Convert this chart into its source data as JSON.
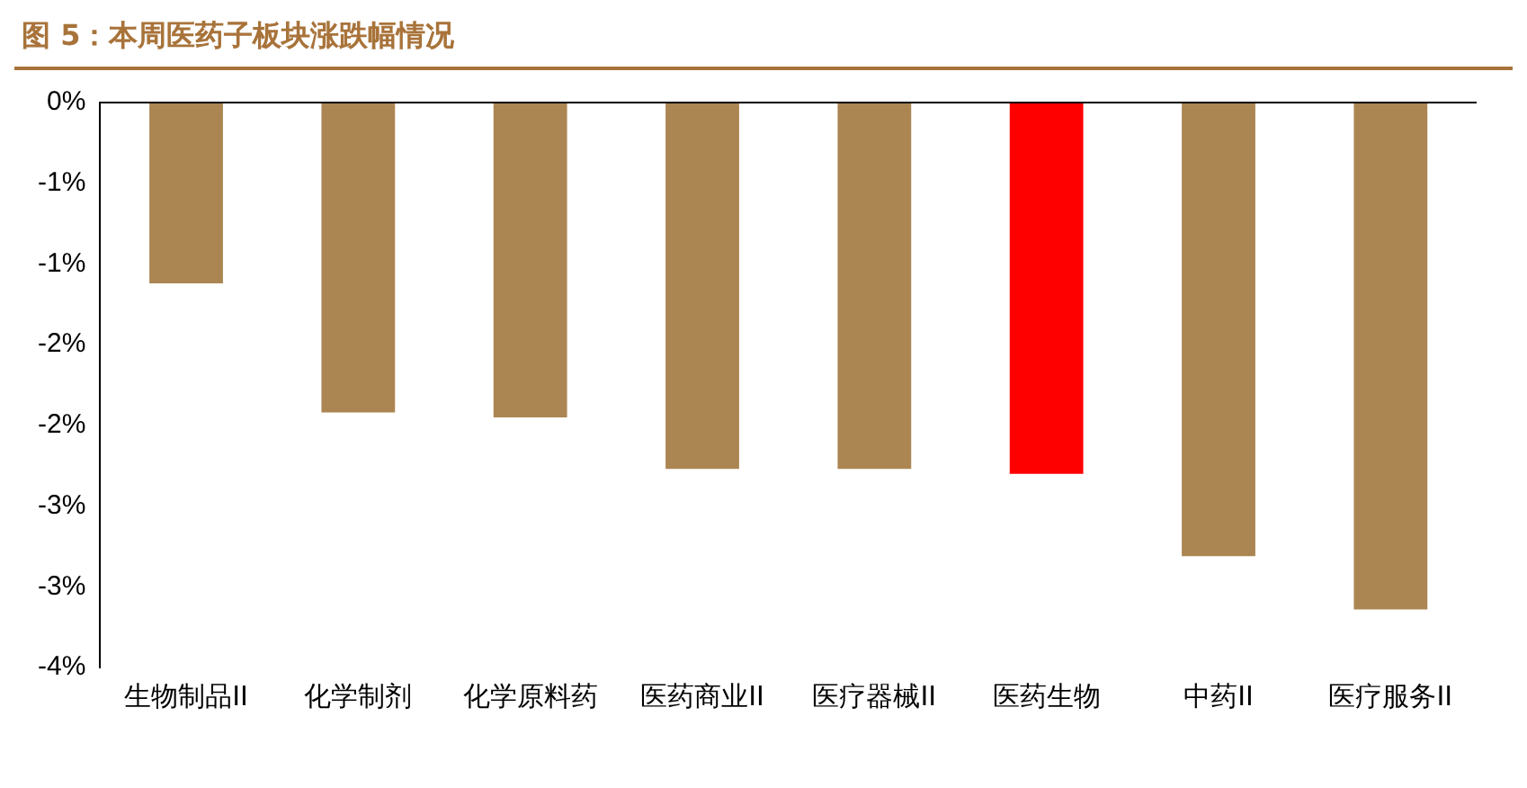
{
  "chart_data": {
    "type": "bar",
    "title": "图 5：本周医药子板块涨跌幅情况",
    "categories": [
      "生物制品II",
      "化学制剂",
      "化学原料药",
      "医药商业II",
      "医疗器械II",
      "医药生物",
      "中药II",
      "医疗服务II"
    ],
    "values": [
      -1.12,
      -1.92,
      -1.95,
      -2.27,
      -2.27,
      -2.3,
      -2.81,
      -3.14
    ],
    "colors": [
      "#ab8552",
      "#ab8552",
      "#ab8552",
      "#ab8552",
      "#ab8552",
      "#ff0000",
      "#ab8552",
      "#ab8552"
    ],
    "ylim": [
      -3.5,
      0
    ],
    "yticks": [
      {
        "value": 0,
        "label": "0%"
      },
      {
        "value": -0.5,
        "label": "-1%"
      },
      {
        "value": -1,
        "label": "-1%"
      },
      {
        "value": -1.5,
        "label": "-2%"
      },
      {
        "value": -2,
        "label": "-2%"
      },
      {
        "value": -2.5,
        "label": "-3%"
      },
      {
        "value": -3,
        "label": "-3%"
      },
      {
        "value": -3.5,
        "label": "-4%"
      }
    ],
    "grid": false,
    "legend": false
  }
}
